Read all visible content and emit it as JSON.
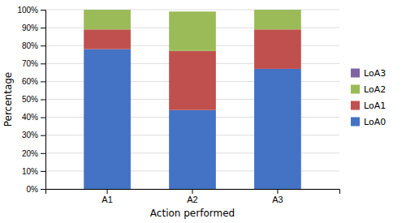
{
  "chart_data": {
    "type": "bar",
    "stacked": true,
    "categories": [
      "A1",
      "A2",
      "A3"
    ],
    "series": [
      {
        "name": "LoA0",
        "color": "#4472C4",
        "values": [
          78,
          44,
          67
        ]
      },
      {
        "name": "LoA1",
        "color": "#C0504D",
        "values": [
          11,
          33,
          22
        ]
      },
      {
        "name": "LoA2",
        "color": "#9BBB59",
        "values": [
          11,
          22,
          11
        ]
      },
      {
        "name": "LoA3",
        "color": "#8064A2",
        "values": [
          0,
          0,
          0
        ]
      }
    ],
    "xlabel": "Action performed",
    "ylabel": "Percentage",
    "ylim": [
      0,
      100
    ],
    "yticks": [
      {
        "value": 0,
        "label": "0%"
      },
      {
        "value": 10,
        "label": "10%"
      },
      {
        "value": 20,
        "label": "20%"
      },
      {
        "value": 30,
        "label": "30%"
      },
      {
        "value": 40,
        "label": "40%"
      },
      {
        "value": 50,
        "label": "50%"
      },
      {
        "value": 60,
        "label": "60%"
      },
      {
        "value": 70,
        "label": "70%"
      },
      {
        "value": 80,
        "label": "80%"
      },
      {
        "value": 90,
        "label": "90%"
      },
      {
        "value": 100,
        "label": "100%"
      }
    ],
    "grid": true,
    "legend": "right"
  }
}
